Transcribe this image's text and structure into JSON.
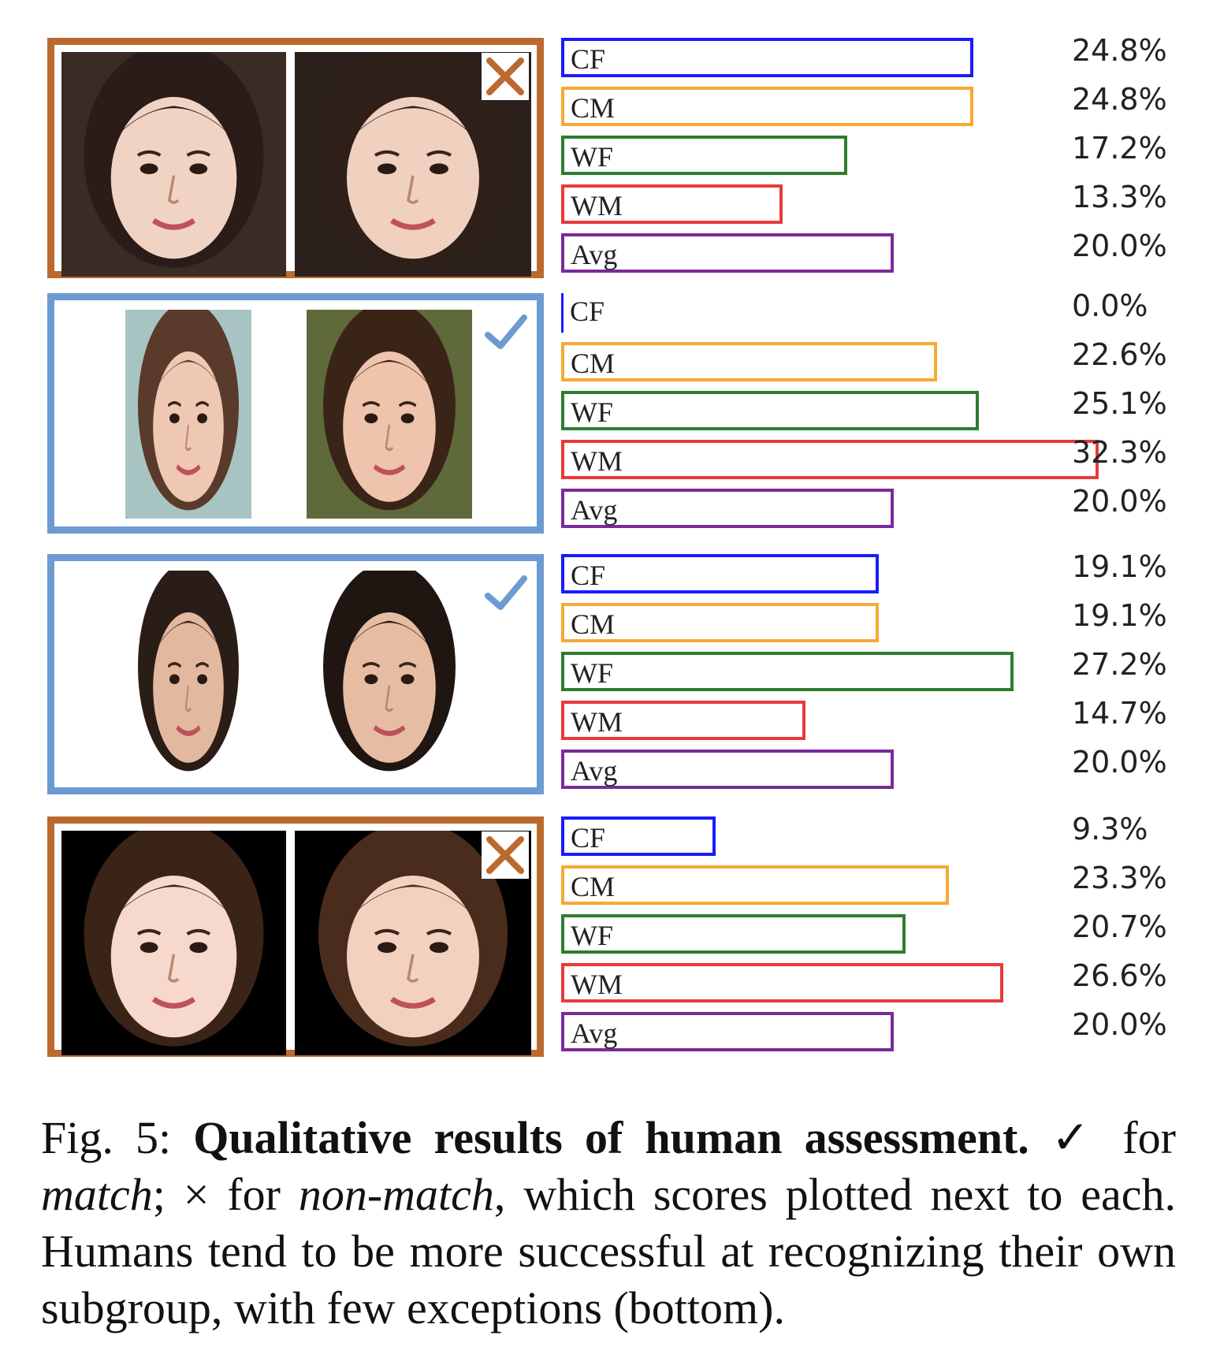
{
  "panels": [
    {
      "outcome": "non-match",
      "frame_color": "#bb6a2f",
      "mark_icon": "cross-icon",
      "bars": [
        {
          "label": "CF",
          "value": 24.8,
          "text": "24.8%",
          "color": "#1a1aff"
        },
        {
          "label": "CM",
          "value": 24.8,
          "text": "24.8%",
          "color": "#f6a934"
        },
        {
          "label": "WF",
          "value": 17.2,
          "text": "17.2%",
          "color": "#2e7d2e"
        },
        {
          "label": "WM",
          "value": 13.3,
          "text": "13.3%",
          "color": "#e83a3a"
        },
        {
          "label": "Avg",
          "value": 20.0,
          "text": "20.0%",
          "color": "#7a2a9a"
        }
      ]
    },
    {
      "outcome": "match",
      "frame_color": "#6c9bd2",
      "mark_icon": "checkmark-icon",
      "bars": [
        {
          "label": "CF",
          "value": 0.0,
          "text": "0.0%",
          "color": "#1a1aff"
        },
        {
          "label": "CM",
          "value": 22.6,
          "text": "22.6%",
          "color": "#f6a934"
        },
        {
          "label": "WF",
          "value": 25.1,
          "text": "25.1%",
          "color": "#2e7d2e"
        },
        {
          "label": "WM",
          "value": 32.3,
          "text": "32.3%",
          "color": "#e83a3a"
        },
        {
          "label": "Avg",
          "value": 20.0,
          "text": "20.0%",
          "color": "#7a2a9a"
        }
      ]
    },
    {
      "outcome": "match",
      "frame_color": "#6c9bd2",
      "mark_icon": "checkmark-icon",
      "bars": [
        {
          "label": "CF",
          "value": 19.1,
          "text": "19.1%",
          "color": "#1a1aff"
        },
        {
          "label": "CM",
          "value": 19.1,
          "text": "19.1%",
          "color": "#f6a934"
        },
        {
          "label": "WF",
          "value": 27.2,
          "text": "27.2%",
          "color": "#2e7d2e"
        },
        {
          "label": "WM",
          "value": 14.7,
          "text": "14.7%",
          "color": "#e83a3a"
        },
        {
          "label": "Avg",
          "value": 20.0,
          "text": "20.0%",
          "color": "#7a2a9a"
        }
      ]
    },
    {
      "outcome": "non-match",
      "frame_color": "#bb6a2f",
      "mark_icon": "cross-icon",
      "bars": [
        {
          "label": "CF",
          "value": 9.3,
          "text": "9.3%",
          "color": "#1a1aff"
        },
        {
          "label": "CM",
          "value": 23.3,
          "text": "23.3%",
          "color": "#f6a934"
        },
        {
          "label": "WF",
          "value": 20.7,
          "text": "20.7%",
          "color": "#2e7d2e"
        },
        {
          "label": "WM",
          "value": 26.6,
          "text": "26.6%",
          "color": "#e83a3a"
        },
        {
          "label": "Avg",
          "value": 20.0,
          "text": "20.0%",
          "color": "#7a2a9a"
        }
      ]
    }
  ],
  "caption": {
    "fig_label": "Fig. 5:",
    "bold_title": "Qualitative results of human assessment.",
    "check_symbol": "✓",
    "for_1": "for",
    "match_word": "match",
    "sep": ";",
    "cross_symbol": "×",
    "for_2": "for",
    "nonmatch_word": "non-match",
    "rest": ", which scores plotted next to each. Humans tend to be more successful at recognizing their own subgroup, with few exceptions (bottom)."
  }
}
